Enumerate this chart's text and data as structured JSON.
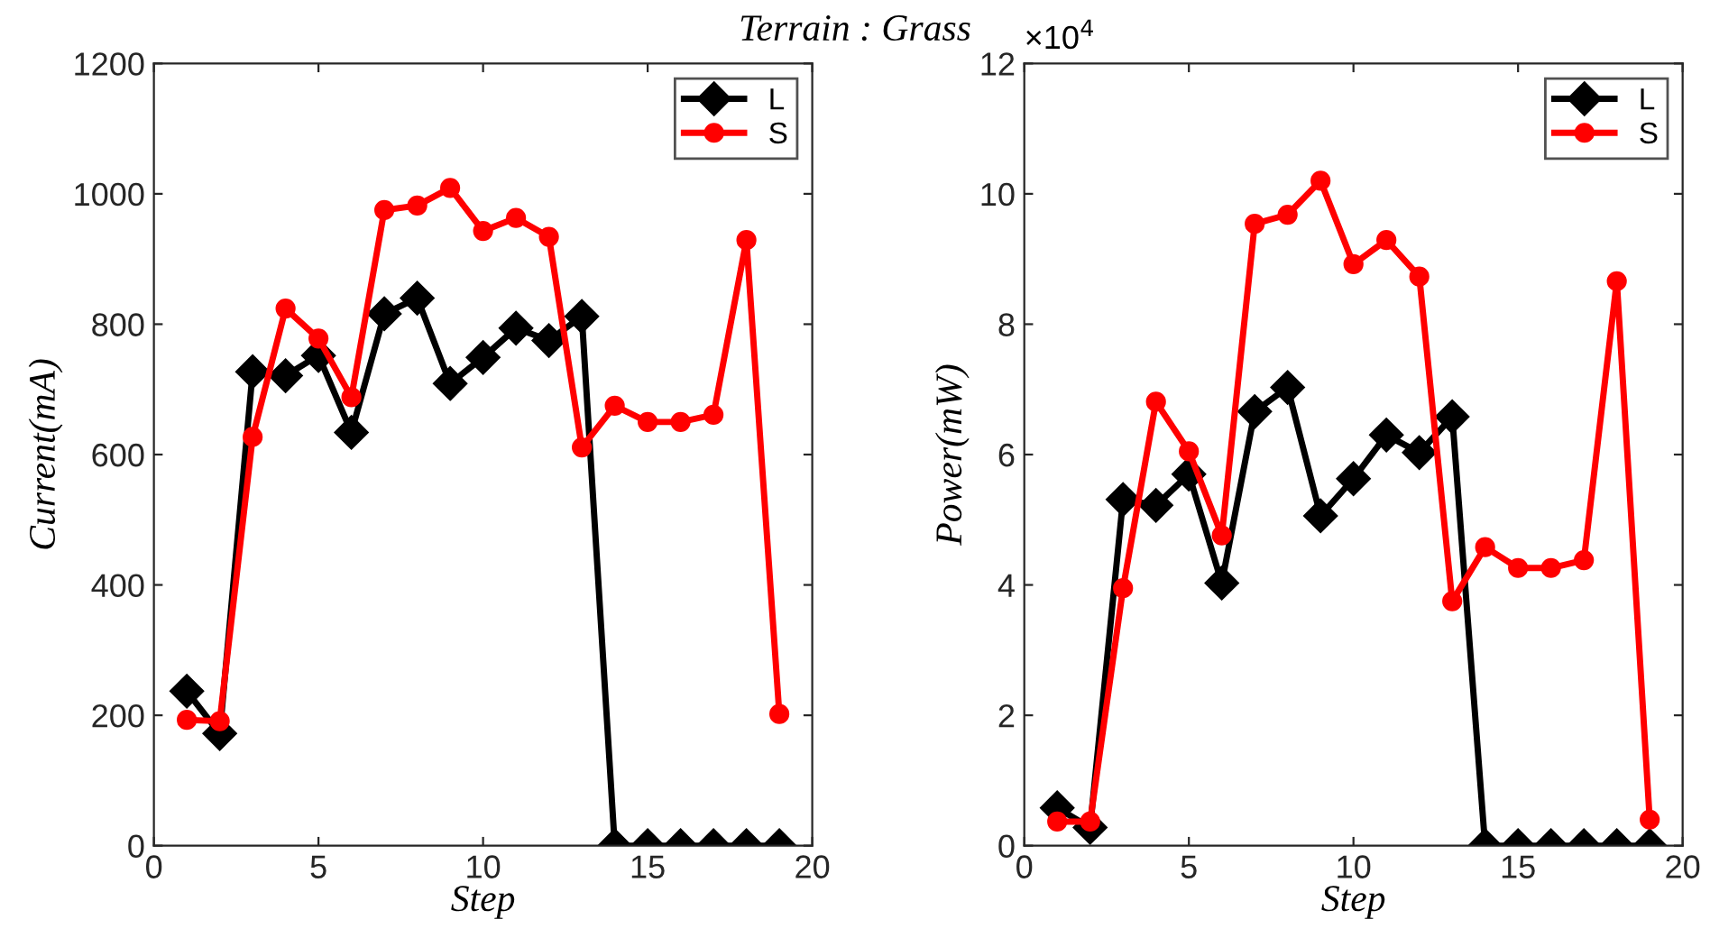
{
  "chart_data": [
    {
      "type": "line",
      "title": "Terrain : Grass",
      "xlabel": "Step",
      "ylabel": "Current(mA)",
      "x": [
        1,
        2,
        3,
        4,
        5,
        6,
        7,
        8,
        9,
        10,
        11,
        12,
        13,
        14,
        15,
        16,
        17,
        18,
        19
      ],
      "xlim": [
        0,
        20
      ],
      "xticks": [
        0,
        5,
        10,
        15,
        20
      ],
      "ylim": [
        0,
        1200
      ],
      "yticks": [
        0,
        200,
        400,
        600,
        800,
        1000,
        1200
      ],
      "grid": false,
      "legend": "top right",
      "series": [
        {
          "name": "L",
          "color": "#000000",
          "marker": "diamond",
          "values": [
            237,
            172,
            727,
            721,
            752,
            634,
            816,
            840,
            709,
            749,
            794,
            775,
            812,
            0,
            0,
            0,
            0,
            0,
            0
          ]
        },
        {
          "name": "S",
          "color": "#ff0000",
          "marker": "circle",
          "values": [
            193,
            191,
            627,
            824,
            778,
            688,
            975,
            982,
            1009,
            943,
            963,
            934,
            611,
            675,
            650,
            650,
            661,
            929,
            202
          ]
        }
      ]
    },
    {
      "type": "line",
      "xlabel": "Step",
      "ylabel": "Power(mW)",
      "x": [
        1,
        2,
        3,
        4,
        5,
        6,
        7,
        8,
        9,
        10,
        11,
        12,
        13,
        14,
        15,
        16,
        17,
        18,
        19
      ],
      "xlim": [
        0,
        20
      ],
      "xticks": [
        0,
        5,
        10,
        15,
        20
      ],
      "ylim": [
        0,
        12
      ],
      "yticks": [
        0,
        2,
        4,
        6,
        8,
        10,
        12
      ],
      "grid": false,
      "legend": "top right",
      "annotations": [
        "×10$^{4}$"
      ],
      "series": [
        {
          "name": "L",
          "color": "#000000",
          "marker": "diamond",
          "values": [
            0.58,
            0.28,
            5.31,
            5.22,
            5.7,
            4.03,
            6.66,
            7.03,
            5.06,
            5.63,
            6.3,
            6.03,
            6.58,
            0,
            0,
            0,
            0,
            0,
            0
          ]
        },
        {
          "name": "S",
          "color": "#ff0000",
          "marker": "circle",
          "values": [
            0.37,
            0.37,
            3.95,
            6.81,
            6.05,
            4.76,
            9.54,
            9.68,
            10.2,
            8.92,
            9.29,
            8.73,
            3.75,
            4.58,
            4.26,
            4.26,
            4.38,
            8.66,
            0.4
          ]
        }
      ]
    }
  ]
}
